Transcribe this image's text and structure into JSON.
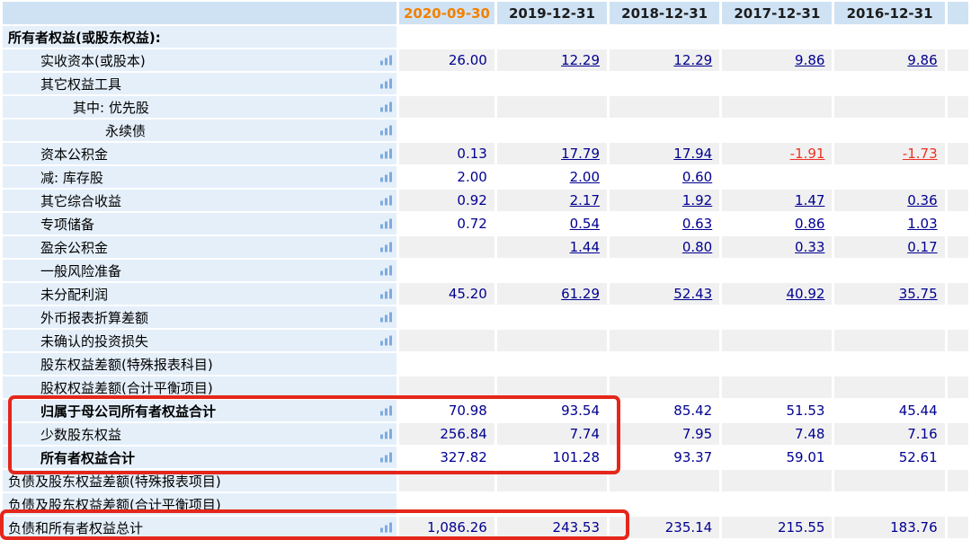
{
  "table": {
    "corner_label": "",
    "columns": [
      "2020-09-30",
      "2019-12-31",
      "2018-12-31",
      "2017-12-31",
      "2016-12-31"
    ],
    "highlight_column_index": 0,
    "rows": [
      {
        "label": "所有者权益(或股东权益):",
        "indent": 0,
        "bold": true,
        "icon": false,
        "linked": false,
        "values": [
          "",
          "",
          "",
          "",
          ""
        ]
      },
      {
        "label": "实收资本(或股本)",
        "indent": 1,
        "bold": false,
        "icon": true,
        "linked": true,
        "values": [
          "26.00",
          "12.29",
          "12.29",
          "9.86",
          "9.86"
        ]
      },
      {
        "label": "其它权益工具",
        "indent": 1,
        "bold": false,
        "icon": true,
        "linked": true,
        "values": [
          "",
          "",
          "",
          "",
          ""
        ]
      },
      {
        "label": "其中: 优先股",
        "indent": 2,
        "bold": false,
        "icon": true,
        "linked": true,
        "values": [
          "",
          "",
          "",
          "",
          ""
        ]
      },
      {
        "label": "永续债",
        "indent": 3,
        "bold": false,
        "icon": true,
        "linked": true,
        "values": [
          "",
          "",
          "",
          "",
          ""
        ]
      },
      {
        "label": "资本公积金",
        "indent": 1,
        "bold": false,
        "icon": true,
        "linked": true,
        "values": [
          "0.13",
          "17.79",
          "17.94",
          "-1.91",
          "-1.73"
        ]
      },
      {
        "label": "减: 库存股",
        "indent": 1,
        "bold": false,
        "icon": true,
        "linked": true,
        "values": [
          "2.00",
          "2.00",
          "0.60",
          "",
          ""
        ]
      },
      {
        "label": "其它综合收益",
        "indent": 1,
        "bold": false,
        "icon": true,
        "linked": true,
        "values": [
          "0.92",
          "2.17",
          "1.92",
          "1.47",
          "0.36"
        ]
      },
      {
        "label": "专项储备",
        "indent": 1,
        "bold": false,
        "icon": true,
        "linked": true,
        "values": [
          "0.72",
          "0.54",
          "0.63",
          "0.86",
          "1.03"
        ]
      },
      {
        "label": "盈余公积金",
        "indent": 1,
        "bold": false,
        "icon": true,
        "linked": true,
        "values": [
          "",
          "1.44",
          "0.80",
          "0.33",
          "0.17"
        ]
      },
      {
        "label": "一般风险准备",
        "indent": 1,
        "bold": false,
        "icon": true,
        "linked": true,
        "values": [
          "",
          "",
          "",
          "",
          ""
        ]
      },
      {
        "label": "未分配利润",
        "indent": 1,
        "bold": false,
        "icon": true,
        "linked": true,
        "values": [
          "45.20",
          "61.29",
          "52.43",
          "40.92",
          "35.75"
        ]
      },
      {
        "label": "外币报表折算差额",
        "indent": 1,
        "bold": false,
        "icon": true,
        "linked": true,
        "values": [
          "",
          "",
          "",
          "",
          ""
        ]
      },
      {
        "label": "未确认的投资损失",
        "indent": 1,
        "bold": false,
        "icon": true,
        "linked": true,
        "values": [
          "",
          "",
          "",
          "",
          ""
        ]
      },
      {
        "label": "股东权益差额(特殊报表科目)",
        "indent": 1,
        "bold": false,
        "icon": false,
        "linked": false,
        "values": [
          "",
          "",
          "",
          "",
          ""
        ]
      },
      {
        "label": "股权权益差额(合计平衡项目)",
        "indent": 1,
        "bold": false,
        "icon": false,
        "linked": false,
        "values": [
          "",
          "",
          "",
          "",
          ""
        ]
      },
      {
        "label": "归属于母公司所有者权益合计",
        "indent": 1,
        "bold": true,
        "icon": true,
        "linked": false,
        "values": [
          "70.98",
          "93.54",
          "85.42",
          "51.53",
          "45.44"
        ]
      },
      {
        "label": "少数股东权益",
        "indent": 1,
        "bold": false,
        "icon": true,
        "linked": false,
        "values": [
          "256.84",
          "7.74",
          "7.95",
          "7.48",
          "7.16"
        ]
      },
      {
        "label": "所有者权益合计",
        "indent": 1,
        "bold": true,
        "icon": true,
        "linked": false,
        "values": [
          "327.82",
          "101.28",
          "93.37",
          "59.01",
          "52.61"
        ]
      },
      {
        "label": "负债及股东权益差额(特殊报表项目)",
        "indent": 0,
        "bold": false,
        "icon": false,
        "linked": false,
        "values": [
          "",
          "",
          "",
          "",
          ""
        ]
      },
      {
        "label": "负债及股东权益差额(合计平衡项目)",
        "indent": 0,
        "bold": false,
        "icon": false,
        "linked": false,
        "values": [
          "",
          "",
          "",
          "",
          ""
        ]
      },
      {
        "label": "负债和所有者权益总计",
        "indent": 0,
        "bold": false,
        "icon": true,
        "linked": false,
        "values": [
          "1,086.26",
          "243.53",
          "235.14",
          "215.55",
          "183.76"
        ]
      }
    ]
  },
  "annotations": {
    "box_color": "#e5261b",
    "boxes": [
      {
        "id": "equity-totals",
        "encloses": "归属于母公司所有者权益合计 / 少数股东权益 / 所有者权益合计 (2020-09-30, 2019-12-31)"
      },
      {
        "id": "total-liabilities-and-equity",
        "encloses": "负债和所有者权益总计 (2020-09-30, 2019-12-31)"
      }
    ]
  },
  "colors": {
    "header_bg": "#cfe2f4",
    "label_column_bg": "#e4effa",
    "row_stripe_gray": "#f0f0f0",
    "value_navy": "#000090",
    "negative_red": "#ee3124",
    "current_period_orange": "#f28100",
    "icon_blue": "#7fabdd"
  }
}
